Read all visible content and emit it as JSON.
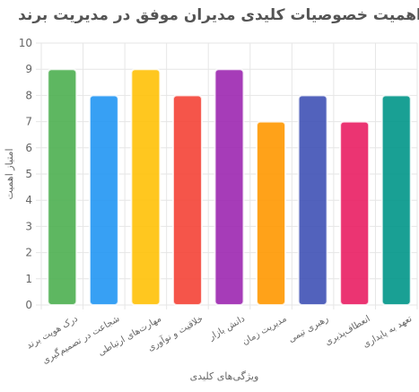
{
  "chart_data": {
    "type": "bar",
    "title": "اهمیت خصوصیات کلیدی مدیران موفق در مدیریت برند",
    "xlabel": "ویژگی‌های کلیدی",
    "ylabel": "امتیاز اهمیت",
    "ylim": [
      0,
      10
    ],
    "yticks": [
      0,
      1,
      2,
      3,
      4,
      5,
      6,
      7,
      8,
      9,
      10
    ],
    "grid": true,
    "legend": "none",
    "categories": [
      "درک هویت برند",
      "شجاعت در تصمیم‌گیری",
      "مهارت‌های ارتباطی",
      "خلاقیت و نوآوری",
      "دانش بازار",
      "مدیریت زمان",
      "رهبری تیمی",
      "انعطاف‌پذیری",
      "تعهد به پایداری"
    ],
    "values": [
      9,
      8,
      9,
      8,
      9,
      7,
      8,
      7,
      8
    ],
    "colors": [
      "#4CAF50",
      "#2196F3",
      "#FFC107",
      "#F44336",
      "#9C27B0",
      "#FF9800",
      "#3F51B5",
      "#E91E63",
      "#009688"
    ]
  }
}
